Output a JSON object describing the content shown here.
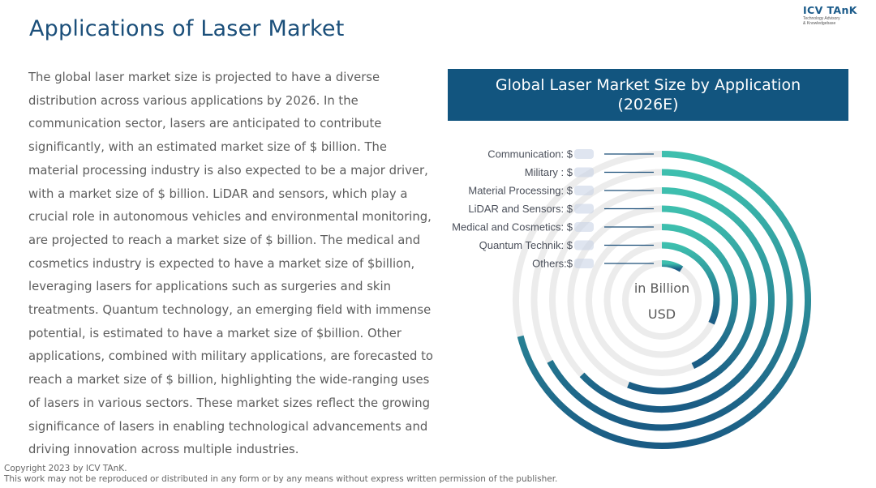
{
  "page": {
    "title": "Applications of Laser Market",
    "body": "The global laser market size is projected to have a diverse distribution across various applications by 2026. In the communication sector, lasers are anticipated to contribute significantly, with an estimated market size of $ billion. The material processing industry is also expected to be a major driver, with a market size of $ billion. LiDAR and sensors, which play a crucial role in autonomous vehicles and environmental monitoring, are projected to reach a market size of $ billion. The medical and cosmetics industry is expected to have a market size of $billion, leveraging lasers for applications such as surgeries and skin treatments. Quantum technology, an emerging field with immense potential, is estimated to have a market size of $billion. Other applications, combined with military applications, are forecasted to reach a market size of $ billion, highlighting the wide-ranging uses of lasers in various sectors. These market sizes reflect the growing significance of lasers in enabling technological advancements and driving innovation across multiple industries."
  },
  "logo": {
    "name": "ICV TAnK",
    "tagline_1": "Technology Advisory",
    "tagline_2": "& Knowledgebase"
  },
  "footer": {
    "line1": "Copyright  2023 by ICV TAnK.",
    "line2": "This work may not be reproduced or distributed in any form or by any means without express written permission of the publisher."
  },
  "colors": {
    "accent": "#12557f",
    "ring_start": "#3ebfae",
    "ring_end": "#1a5b84",
    "track": "#ececec"
  },
  "chart_data": {
    "type": "radial_bar",
    "title": "Global Laser Market Size by Application (2026E)",
    "center_label_1": "in Billion",
    "center_label_2": "USD",
    "categories": [
      "Communication: $",
      "Military : $",
      "Material Processing: $",
      "LiDAR and Sensors: $",
      "Medical and Cosmetics: $",
      "Quantum Technik: $",
      "Others:$"
    ],
    "values": [
      0.71,
      0.67,
      0.63,
      0.56,
      0.43,
      0.32,
      0.09
    ],
    "value_note": "values obscured in source; values shown as fraction of full circle"
  }
}
